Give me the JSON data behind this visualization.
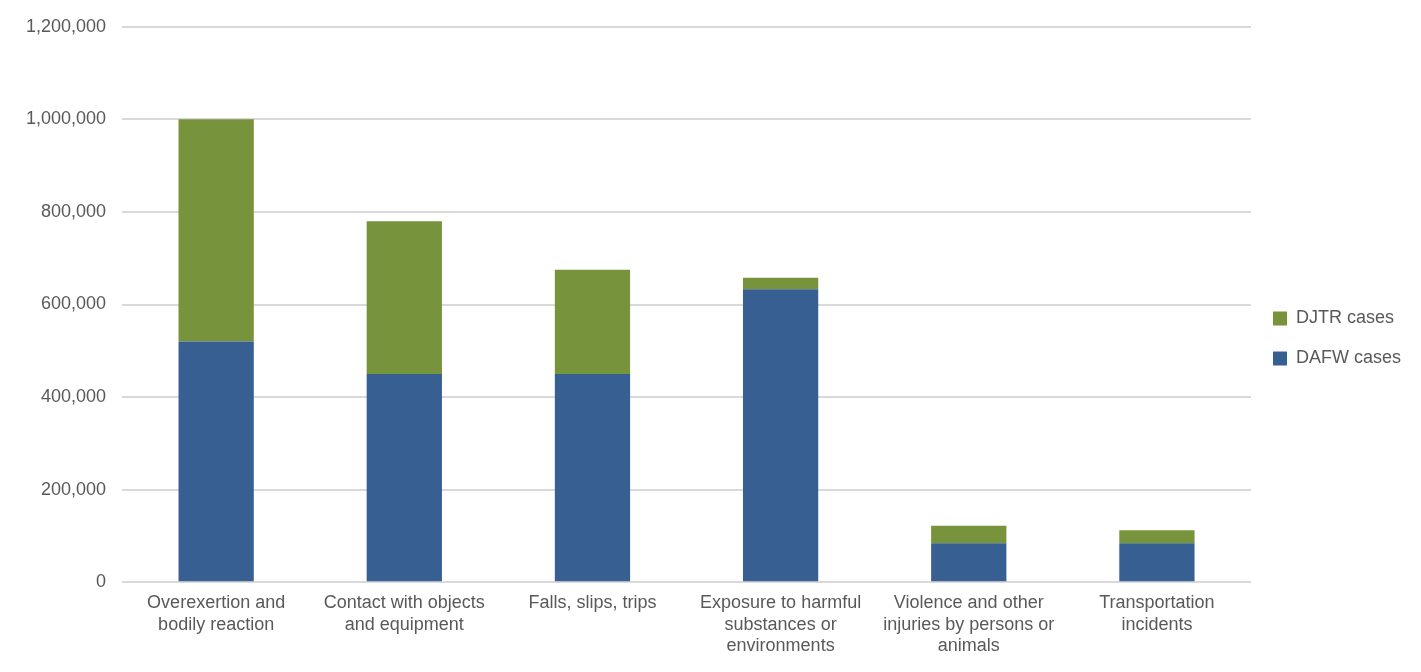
{
  "chart_data": {
    "type": "bar",
    "stacked": true,
    "categories": [
      "Overexertion and bodily reaction",
      "Contact with objects and equipment",
      "Falls, slips, trips",
      "Exposure to harmful substances or environments",
      "Violence and other injuries by persons or animals",
      "Transportation incidents"
    ],
    "series": [
      {
        "name": "DAFW cases",
        "color": "#375f91",
        "values": [
          520000,
          450000,
          450000,
          633000,
          84000,
          84000
        ]
      },
      {
        "name": "DJTR cases",
        "color": "#77933c",
        "values": [
          480000,
          330000,
          225000,
          25000,
          38000,
          28000
        ]
      }
    ],
    "ylim": [
      0,
      1200000
    ],
    "yticks": [
      {
        "value": 0,
        "label": "0"
      },
      {
        "value": 200000,
        "label": "200,000"
      },
      {
        "value": 400000,
        "label": "400,000"
      },
      {
        "value": 600000,
        "label": "600,000"
      },
      {
        "value": 800000,
        "label": "800,000"
      },
      {
        "value": 1000000,
        "label": "1,000,000"
      },
      {
        "value": 1200000,
        "label": "1,200,000"
      }
    ],
    "grid": "y",
    "legend": "right"
  }
}
